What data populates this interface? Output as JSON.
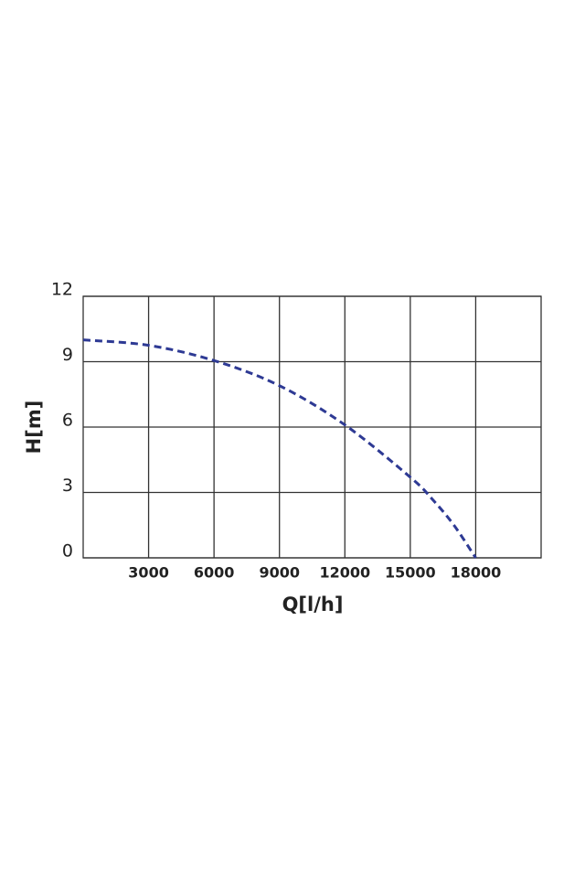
{
  "chart_data": {
    "type": "line",
    "x_label": "Q[l/h]",
    "y_label": "H[m]",
    "x": [
      0,
      3000,
      6000,
      9000,
      12000,
      15000,
      16000,
      17000,
      18000
    ],
    "series": [
      {
        "color": "#2e3a94",
        "values": [
          10,
          9.75,
          9.05,
          7.9,
          6.1,
          3.7,
          2.7,
          1.5,
          0
        ]
      }
    ],
    "xlim": [
      0,
      21000
    ],
    "xticks": [
      3000,
      6000,
      9000,
      12000,
      15000,
      18000
    ],
    "ylim": [
      0,
      12
    ],
    "yticks": [
      0,
      3,
      6,
      9,
      12
    ],
    "grid": true
  }
}
